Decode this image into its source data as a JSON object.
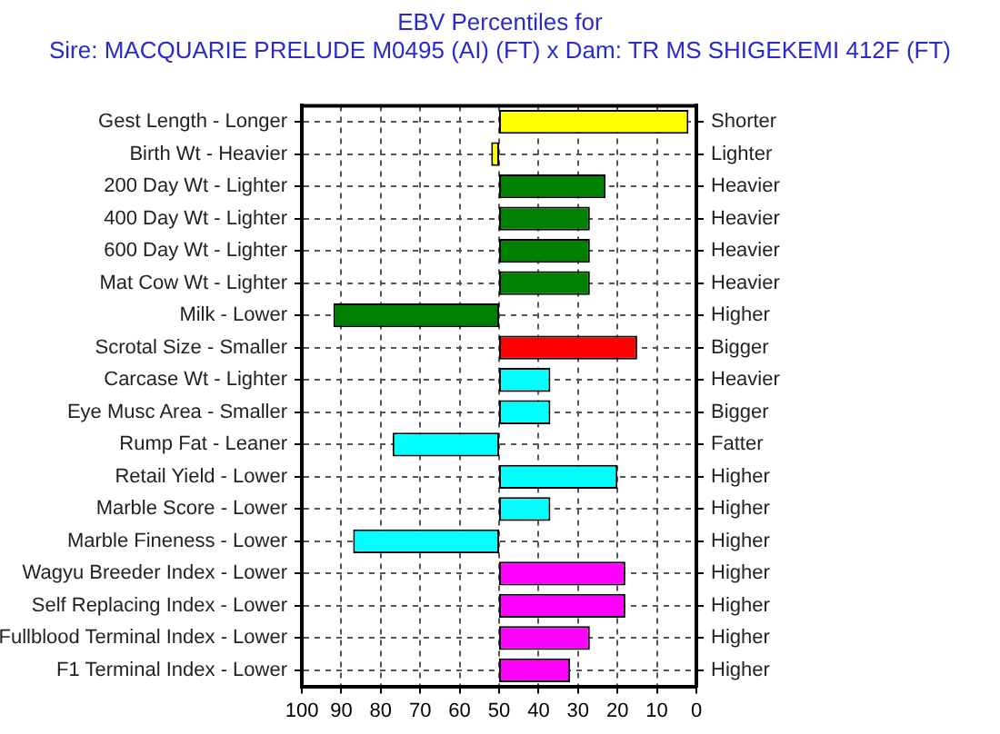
{
  "chart_data": {
    "type": "bar",
    "orientation": "horizontal",
    "title": "EBV Percentiles for",
    "subtitle": "Sire: MACQUARIE PRELUDE M0495 (AI) (FT) x Dam: TR MS SHIGEKEMI 412F (FT)",
    "categories": [
      "Gest Length - Longer",
      "Birth Wt - Heavier",
      "200 Day Wt - Lighter",
      "400 Day Wt - Lighter",
      "600 Day Wt - Lighter",
      "Mat Cow Wt - Lighter",
      "Milk - Lower",
      "Scrotal Size - Smaller",
      "Carcase Wt - Lighter",
      "Eye Musc Area - Smaller",
      "Rump Fat - Leaner",
      "Retail Yield - Lower",
      "Marble Score - Lower",
      "Marble Fineness - Lower",
      "Wagyu Breeder Index - Lower",
      "Self Replacing Index - Lower",
      "Fullblood Terminal Index - Lower",
      "F1 Terminal Index - Lower"
    ],
    "y2_categories": [
      "Shorter",
      "Lighter",
      "Heavier",
      "Heavier",
      "Heavier",
      "Heavier",
      "Higher",
      "Bigger",
      "Heavier",
      "Bigger",
      "Fatter",
      "Higher",
      "Higher",
      "Higher",
      "Higher",
      "Higher",
      "Higher",
      "Higher"
    ],
    "base": [
      50,
      50,
      50,
      50,
      50,
      50,
      50,
      50,
      50,
      50,
      50,
      50,
      50,
      50,
      50,
      50,
      50,
      50
    ],
    "values": [
      -48,
      2,
      -27,
      -23,
      -23,
      -23,
      42,
      -35,
      -13,
      -13,
      27,
      -30,
      -13,
      37,
      -32,
      -32,
      -23,
      -18
    ],
    "colors": [
      "#ffff00",
      "#ffff00",
      "#008000",
      "#008000",
      "#008000",
      "#008000",
      "#008000",
      "#ff0000",
      "#00ffff",
      "#00ffff",
      "#00ffff",
      "#00ffff",
      "#00ffff",
      "#00ffff",
      "#ff00ff",
      "#ff00ff",
      "#ff00ff",
      "#ff00ff"
    ],
    "xlim": [
      100,
      0
    ],
    "xticks": [
      100,
      90,
      80,
      70,
      60,
      50,
      40,
      30,
      20,
      10,
      0
    ],
    "grid": true
  }
}
